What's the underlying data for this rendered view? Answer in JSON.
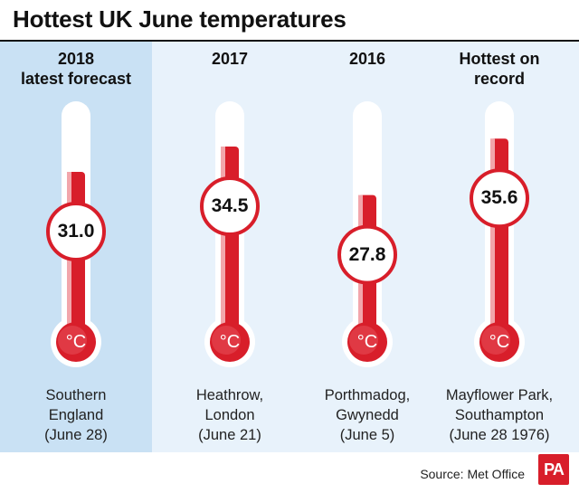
{
  "title": "Hottest UK June temperatures",
  "source": "Source: Met Office",
  "logo_text": "PA",
  "unit_label": "°C",
  "colors": {
    "mercury": "#d81e2a",
    "mercury_light": "#f2a6ab",
    "panel": "#e8f2fb",
    "panel_highlight": "#c9e1f4"
  },
  "chart_data": {
    "type": "bar",
    "categories": [
      "2018 latest forecast",
      "2017",
      "2016",
      "Hottest on record"
    ],
    "values": [
      31.0,
      34.5,
      27.8,
      35.6
    ],
    "unit": "°C",
    "columns": [
      {
        "header": [
          "2018",
          "latest forecast"
        ],
        "value": "31.0",
        "location": [
          "Southern",
          "England",
          "(June 28)"
        ]
      },
      {
        "header": [
          "2017"
        ],
        "value": "34.5",
        "location": [
          "Heathrow,",
          "London",
          "(June 21)"
        ]
      },
      {
        "header": [
          "2016"
        ],
        "value": "27.8",
        "location": [
          "Porthmadog,",
          "Gwynedd",
          "(June 5)"
        ]
      },
      {
        "header": [
          "Hottest on",
          "record"
        ],
        "value": "35.6",
        "location": [
          "Mayflower Park,",
          "Southampton",
          "(June 28 1976)"
        ]
      }
    ]
  }
}
